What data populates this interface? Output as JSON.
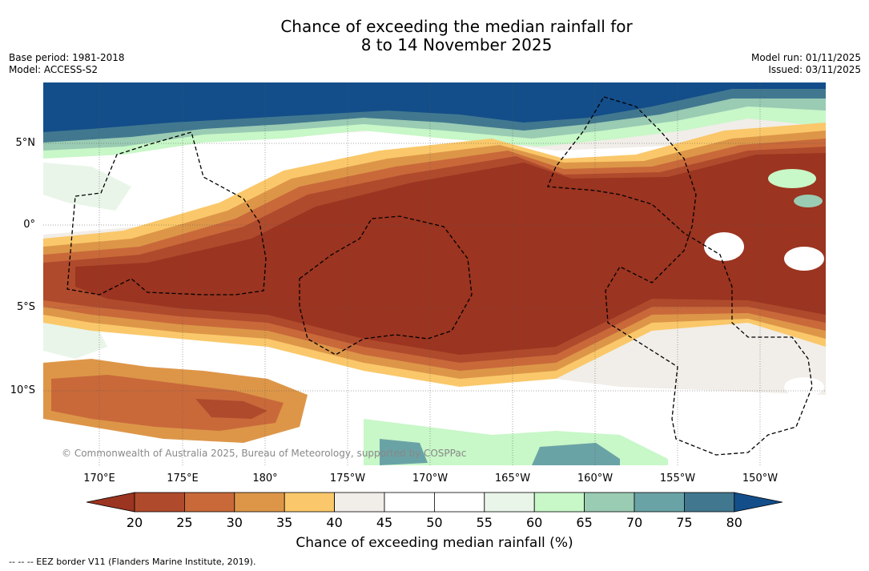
{
  "title": {
    "line1": "Chance of exceeding the median rainfall for",
    "line2": "8 to 14 November 2025"
  },
  "meta_left": {
    "base_period": "Base period: 1981-2018",
    "model": "Model: ACCESS-S2"
  },
  "meta_right": {
    "model_run": "Model run: 01/11/2025",
    "issued": "Issued: 03/11/2025"
  },
  "map": {
    "lat_labels": [
      "5°N",
      "0°",
      "5°S",
      "10°S"
    ],
    "lon_labels": [
      "170°E",
      "175°E",
      "180°",
      "175°W",
      "170°W",
      "165°W",
      "160°W",
      "155°W",
      "150°W"
    ],
    "copyright": "© Commonwealth of Australia 2025, Bureau of Meteorology, supported by COSPPac"
  },
  "colorbar": {
    "ticks": [
      "20",
      "25",
      "30",
      "35",
      "40",
      "45",
      "50",
      "55",
      "60",
      "65",
      "70",
      "75",
      "80"
    ],
    "colors": [
      "#9b3420",
      "#b04a2c",
      "#c9693a",
      "#dd9648",
      "#fac86a",
      "#f1ede8",
      "#ffffff",
      "#ffffff",
      "#e9f5e9",
      "#c8f7c8",
      "#9acbb3",
      "#6aa3a6",
      "#41788f",
      "#134e8a"
    ],
    "title": "Chance of exceeding median rainfall (%)"
  },
  "footnote": "--  --  -- EEZ border V11 (Flanders Marine Institute, 2019)."
}
